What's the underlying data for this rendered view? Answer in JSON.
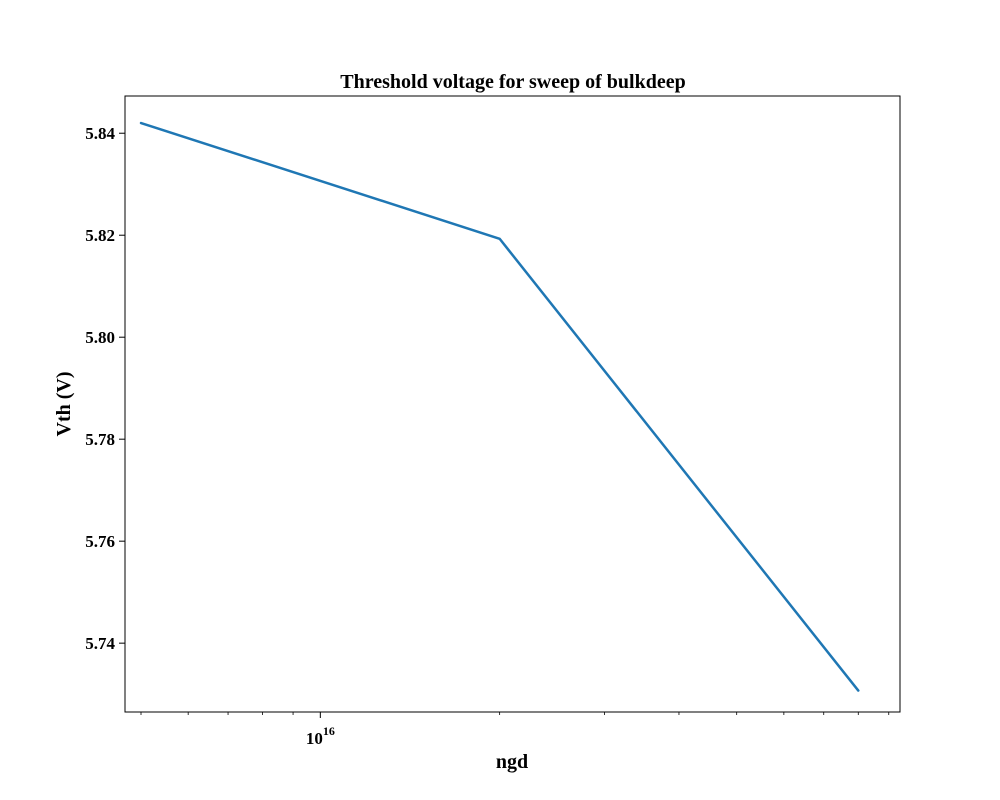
{
  "chart_data": {
    "type": "line",
    "title": "Threshold voltage for sweep of bulkdeep",
    "xlabel": "ngd",
    "ylabel": "Vth (V)",
    "xscale": "log",
    "xlim": [
      4700000000000000.0,
      9.4e+16
    ],
    "ylim": [
      5.7265,
      5.8473
    ],
    "grid": false,
    "legend": "none",
    "x_major_ticks": [
      {
        "value": 1e+16,
        "base": "10",
        "exponent": "16"
      }
    ],
    "x_minor_ticks": [
      5000000000000000.0,
      6000000000000000.0,
      7000000000000000.0,
      8000000000000000.0,
      9000000000000000.0,
      2e+16,
      3e+16,
      4e+16,
      5e+16,
      6e+16,
      7e+16,
      8e+16,
      9e+16
    ],
    "y_ticks": [
      {
        "value": 5.74,
        "label": "5.74"
      },
      {
        "value": 5.76,
        "label": "5.76"
      },
      {
        "value": 5.78,
        "label": "5.78"
      },
      {
        "value": 5.8,
        "label": "5.80"
      },
      {
        "value": 5.82,
        "label": "5.82"
      },
      {
        "value": 5.84,
        "label": "5.84"
      }
    ],
    "series": [
      {
        "color": "#1f77b4",
        "x": [
          5000000000000000.0,
          2e+16,
          8e+16
        ],
        "y": [
          5.842,
          5.8193,
          5.7307
        ]
      }
    ]
  }
}
